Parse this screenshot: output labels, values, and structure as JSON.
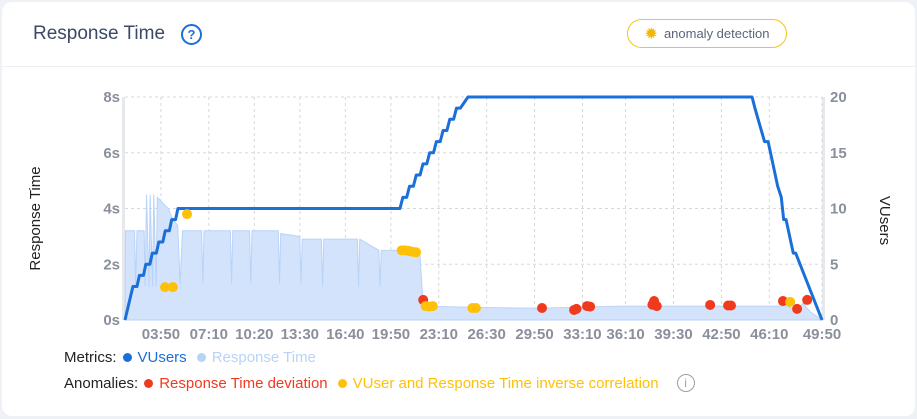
{
  "header": {
    "title": "Response Time",
    "help_icon": "question-circle-icon",
    "anomaly_button": "anomaly detection",
    "anomaly_icon": "gear-icon"
  },
  "legend": {
    "metrics_label": "Metrics:",
    "metrics": [
      {
        "name": "VUsers",
        "color": "#1b6fd8"
      },
      {
        "name": "Response Time",
        "color": "#b9d3f8"
      }
    ],
    "anomalies_label": "Anomalies:",
    "anomalies": [
      {
        "name": "Response Time deviation",
        "color": "#f03a1e"
      },
      {
        "name": "VUser and Response Time inverse correlation",
        "color": "#ffc107"
      }
    ],
    "info_icon": "info-circle-icon"
  },
  "chart_data": {
    "type": "line",
    "ylabel": "Response Time",
    "y2label": "VUsers",
    "xlim": [
      "01:20",
      "49:50"
    ],
    "ylim": [
      0,
      8
    ],
    "y2lim": [
      0,
      20
    ],
    "x_ticks": [
      "03:50",
      "07:10",
      "10:20",
      "13:30",
      "16:40",
      "19:50",
      "23:10",
      "26:30",
      "29:50",
      "33:10",
      "36:10",
      "39:30",
      "42:50",
      "46:10",
      "49:50"
    ],
    "y_ticks": [
      "0s",
      "2s",
      "4s",
      "6s",
      "8s"
    ],
    "y2_ticks": [
      "0",
      "5",
      "10",
      "15",
      "20"
    ],
    "grid": true,
    "series": [
      {
        "name": "VUsers",
        "axis": "right",
        "color": "#1b6fd8",
        "points": [
          [
            "01:20",
            0
          ],
          [
            "01:53",
            3
          ],
          [
            "02:10",
            3
          ],
          [
            "02:20",
            4
          ],
          [
            "02:37",
            4
          ],
          [
            "02:47",
            5
          ],
          [
            "03:04",
            5
          ],
          [
            "03:14",
            6
          ],
          [
            "03:31",
            6
          ],
          [
            "03:41",
            7
          ],
          [
            "03:58",
            7
          ],
          [
            "04:08",
            8
          ],
          [
            "04:25",
            8
          ],
          [
            "04:35",
            9
          ],
          [
            "04:51",
            9
          ],
          [
            "05:01",
            10
          ],
          [
            "20:28",
            10
          ],
          [
            "20:40",
            11
          ],
          [
            "20:56",
            11
          ],
          [
            "21:08",
            12
          ],
          [
            "21:24",
            12
          ],
          [
            "21:36",
            13
          ],
          [
            "21:52",
            13
          ],
          [
            "22:04",
            14
          ],
          [
            "22:20",
            14
          ],
          [
            "22:32",
            15
          ],
          [
            "22:48",
            15
          ],
          [
            "23:00",
            16
          ],
          [
            "23:16",
            16
          ],
          [
            "23:28",
            17
          ],
          [
            "23:44",
            17
          ],
          [
            "23:56",
            18
          ],
          [
            "24:12",
            18
          ],
          [
            "24:24",
            19
          ],
          [
            "24:40",
            19
          ],
          [
            "25:12",
            20
          ],
          [
            "44:58",
            20
          ],
          [
            "45:10",
            19
          ],
          [
            "45:50",
            16
          ],
          [
            "46:05",
            16
          ],
          [
            "46:35",
            13
          ],
          [
            "46:45",
            12
          ],
          [
            "47:00",
            11
          ],
          [
            "47:10",
            9
          ],
          [
            "47:20",
            9
          ],
          [
            "47:50",
            6
          ],
          [
            "48:00",
            6
          ],
          [
            "49:50",
            0
          ]
        ]
      },
      {
        "name": "Response Time",
        "axis": "left",
        "color": "#b9d3f8",
        "points": [
          [
            "01:20",
            0
          ],
          [
            "01:22",
            3.2
          ],
          [
            "02:00",
            3.2
          ],
          [
            "02:04",
            1.2
          ],
          [
            "02:10",
            3.2
          ],
          [
            "02:40",
            3.2
          ],
          [
            "02:44",
            1.2
          ],
          [
            "02:50",
            4.5
          ],
          [
            "03:00",
            1.2
          ],
          [
            "03:05",
            4.5
          ],
          [
            "03:15",
            1.2
          ],
          [
            "03:20",
            4.5
          ],
          [
            "03:30",
            1.2
          ],
          [
            "03:35",
            4.4
          ],
          [
            "04:20",
            4.0
          ],
          [
            "04:40",
            3.6
          ],
          [
            "05:00",
            3.4
          ],
          [
            "05:10",
            1.3
          ],
          [
            "05:20",
            3.2
          ],
          [
            "06:40",
            3.2
          ],
          [
            "06:45",
            1.3
          ],
          [
            "06:50",
            3.2
          ],
          [
            "08:40",
            3.2
          ],
          [
            "08:45",
            1.3
          ],
          [
            "08:50",
            3.2
          ],
          [
            "10:00",
            3.2
          ],
          [
            "10:05",
            1.3
          ],
          [
            "10:10",
            3.2
          ],
          [
            "12:00",
            3.2
          ],
          [
            "12:05",
            1.3
          ],
          [
            "12:10",
            3.1
          ],
          [
            "13:30",
            3.0
          ],
          [
            "13:35",
            1.3
          ],
          [
            "13:40",
            2.9
          ],
          [
            "15:00",
            2.9
          ],
          [
            "15:05",
            1.2
          ],
          [
            "15:10",
            2.9
          ],
          [
            "17:30",
            2.9
          ],
          [
            "17:35",
            1.2
          ],
          [
            "17:40",
            2.9
          ],
          [
            "19:00",
            2.5
          ],
          [
            "19:05",
            1.2
          ],
          [
            "19:10",
            2.5
          ],
          [
            "21:50",
            2.5
          ],
          [
            "22:05",
            0.5
          ],
          [
            "26:00",
            0.45
          ],
          [
            "30:00",
            0.42
          ],
          [
            "36:00",
            0.5
          ],
          [
            "40:00",
            0.5
          ],
          [
            "47:30",
            0.5
          ],
          [
            "48:00",
            0.3
          ],
          [
            "48:30",
            0.6
          ],
          [
            "49:00",
            0.3
          ],
          [
            "49:50",
            0
          ]
        ]
      }
    ],
    "anomalies": [
      {
        "type": "Response Time deviation",
        "points": [
          [
            "22:05",
            0.72
          ],
          [
            "30:21",
            0.43
          ],
          [
            "32:35",
            0.36
          ],
          [
            "32:45",
            0.4
          ],
          [
            "33:29",
            0.5
          ],
          [
            "33:42",
            0.48
          ],
          [
            "38:09",
            0.68
          ],
          [
            "38:02",
            0.55
          ],
          [
            "38:20",
            0.5
          ],
          [
            "42:03",
            0.54
          ],
          [
            "43:18",
            0.52
          ],
          [
            "43:30",
            0.52
          ],
          [
            "47:07",
            0.68
          ],
          [
            "48:06",
            0.4
          ],
          [
            "48:48",
            0.72
          ]
        ]
      },
      {
        "type": "VUser and Response Time inverse correlation",
        "points": [
          [
            "04:07",
            1.18
          ],
          [
            "04:40",
            1.18
          ],
          [
            "05:39",
            3.8
          ],
          [
            "20:35",
            2.5
          ],
          [
            "20:50",
            2.5
          ],
          [
            "21:05",
            2.48
          ],
          [
            "21:20",
            2.45
          ],
          [
            "21:35",
            2.43
          ],
          [
            "22:15",
            0.5
          ],
          [
            "22:30",
            0.48
          ],
          [
            "22:45",
            0.5
          ],
          [
            "25:30",
            0.43
          ],
          [
            "25:45",
            0.43
          ],
          [
            "47:37",
            0.65
          ]
        ]
      }
    ]
  }
}
